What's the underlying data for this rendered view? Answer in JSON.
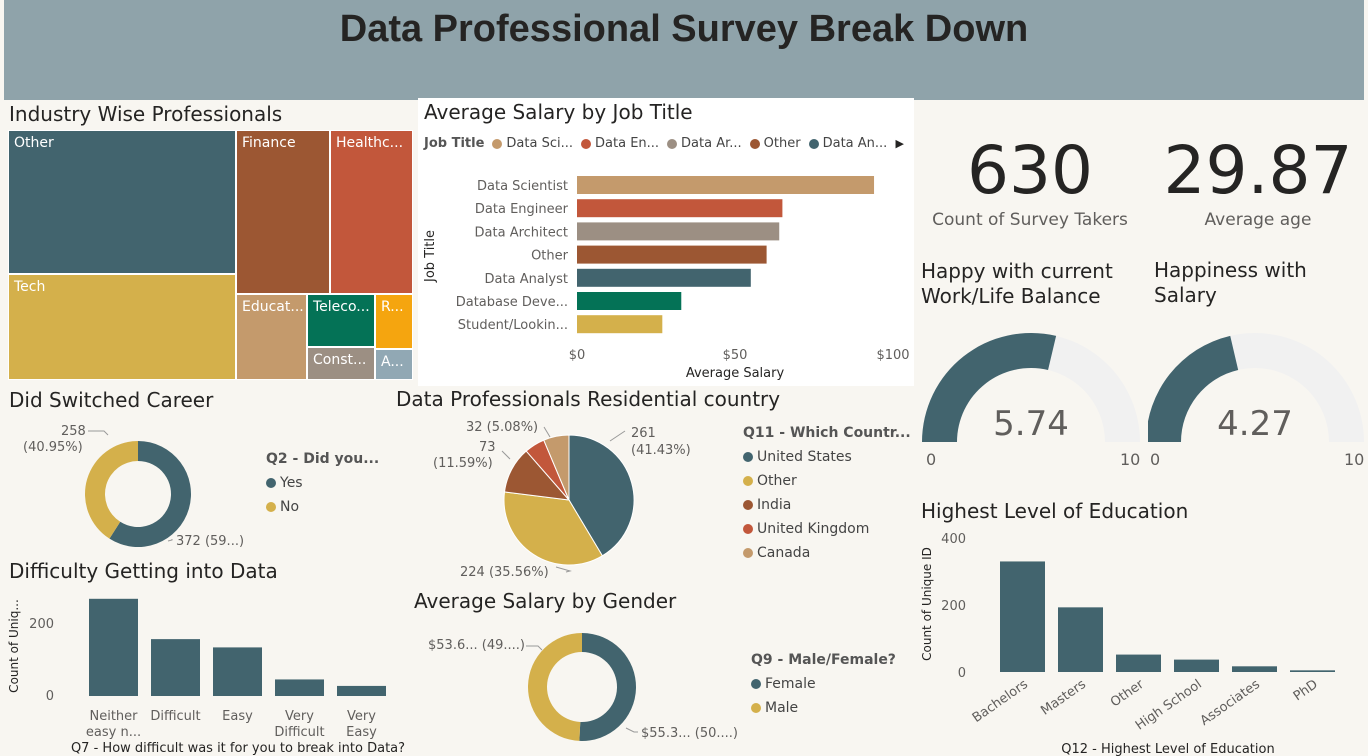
{
  "page": {
    "title": "Data Professional Survey Break Down"
  },
  "colors": {
    "teal": "#42646e",
    "mustard": "#d4b04b",
    "rust": "#9c5733",
    "brick": "#c2573b",
    "tan": "#c49a6c",
    "taupe": "#9c8f83",
    "green": "#047256",
    "orange": "#f5a50f",
    "steel": "#91a8b4",
    "gauge_bg": "#f1f1f1",
    "banner": "#8fa3aa"
  },
  "industry": {
    "title": "Industry Wise Professionals",
    "chart_data": {
      "type": "treemap",
      "items": [
        {
          "label": "Other",
          "color": "teal"
        },
        {
          "label": "Tech",
          "color": "mustard"
        },
        {
          "label": "Finance",
          "color": "rust"
        },
        {
          "label": "Healthc...",
          "color": "brick"
        },
        {
          "label": "Educat...",
          "color": "tan"
        },
        {
          "label": "Teleco...",
          "color": "green"
        },
        {
          "label": "R...",
          "color": "orange"
        },
        {
          "label": "Const...",
          "color": "taupe"
        },
        {
          "label": "A...",
          "color": "steel"
        }
      ]
    }
  },
  "salary_job": {
    "title": "Average Salary by Job Title",
    "legend_title": "Job Title",
    "legend": [
      {
        "label": "Data Sci...",
        "color": "tan"
      },
      {
        "label": "Data En...",
        "color": "brick"
      },
      {
        "label": "Data Ar...",
        "color": "taupe"
      },
      {
        "label": "Other",
        "color": "rust"
      },
      {
        "label": "Data An...",
        "color": "teal"
      }
    ],
    "chart_data": {
      "type": "bar",
      "orientation": "horizontal",
      "categories": [
        "Data Scientist",
        "Data Engineer",
        "Data Architect",
        "Other",
        "Data Analyst",
        "Database Deve...",
        "Student/Lookin..."
      ],
      "values": [
        94,
        65,
        64,
        60,
        55,
        33,
        27
      ],
      "colors": [
        "tan",
        "brick",
        "taupe",
        "rust",
        "teal",
        "green",
        "mustard"
      ],
      "xlim": [
        0,
        100
      ],
      "xticks": [
        "$0",
        "$50",
        "$100"
      ],
      "xlabel": "Average Salary",
      "ylabel": "Job Title"
    }
  },
  "kpi": {
    "count_value": "630",
    "count_label": "Count of Survey Takers",
    "age_value": "29.87",
    "age_label": "Average age"
  },
  "gauges": {
    "balance": {
      "title_line1": "Happy with current",
      "title_line2": "Work/Life Balance",
      "value": 5.74,
      "value_text": "5.74",
      "min": "0",
      "max": "10"
    },
    "salary": {
      "title_line1": "Happiness with",
      "title_line2": "Salary",
      "value": 4.27,
      "value_text": "4.27",
      "min": "0",
      "max": "10"
    }
  },
  "switched": {
    "title": "Did Switched Career",
    "legend_title": "Q2 - Did you...",
    "chart_data": {
      "type": "donut",
      "slices": [
        {
          "label": "Yes",
          "value": 372,
          "color": "teal",
          "data_label": "372 (59...)"
        },
        {
          "label": "No",
          "value": 258,
          "color": "mustard",
          "data_label_1": "258",
          "data_label_2": "(40.95%)"
        }
      ]
    }
  },
  "country": {
    "title": "Data Professionals Residential country",
    "legend_title": "Q11 - Which Countr...",
    "chart_data": {
      "type": "pie",
      "slices": [
        {
          "label": "United States",
          "value": 261,
          "color": "teal",
          "l1": "261",
          "l2": "(41.43%)"
        },
        {
          "label": "Other",
          "value": 224,
          "color": "mustard",
          "l1": "224 (35.56%)"
        },
        {
          "label": "India",
          "value": 73,
          "color": "rust",
          "l1": "73",
          "l2": "(11.59%)"
        },
        {
          "label": "United Kingdom",
          "value": 32,
          "color": "brick",
          "l1": "32 (5.08%)"
        },
        {
          "label": "Canada",
          "value": 40,
          "color": "tan"
        }
      ]
    }
  },
  "difficulty": {
    "title": "Difficulty Getting into Data",
    "chart_data": {
      "type": "bar",
      "categories": [
        [
          "Neither",
          "easy n..."
        ],
        [
          "Difficult"
        ],
        [
          "Easy"
        ],
        [
          "Very",
          "Difficult"
        ],
        [
          "Very",
          "Easy"
        ]
      ],
      "values": [
        270,
        158,
        135,
        46,
        28
      ],
      "ylim": [
        0,
        300
      ],
      "yticks": [
        "0",
        "200"
      ],
      "ylabel": "Count of Uniq...",
      "xlabel": "Q7 - How difficult was it for you to break into Data?"
    }
  },
  "gender": {
    "title": "Average Salary by Gender",
    "legend_title": "Q9 - Male/Female?",
    "chart_data": {
      "type": "donut",
      "slices": [
        {
          "label": "Female",
          "value": 55.3,
          "color": "teal",
          "data_label": "$55.3... (50....)"
        },
        {
          "label": "Male",
          "value": 53.6,
          "color": "mustard",
          "data_label": "$53.6... (49....)"
        }
      ]
    }
  },
  "education": {
    "title": "Highest Level of Education",
    "chart_data": {
      "type": "bar",
      "categories": [
        "Bachelors",
        "Masters",
        "Other",
        "High School",
        "Associates",
        "PhD"
      ],
      "values": [
        330,
        193,
        52,
        37,
        17,
        5
      ],
      "ylim": [
        0,
        400
      ],
      "yticks": [
        "0",
        "200",
        "400"
      ],
      "ylabel": "Count of Unique ID",
      "xlabel": "Q12 - Highest Level of Education"
    }
  }
}
